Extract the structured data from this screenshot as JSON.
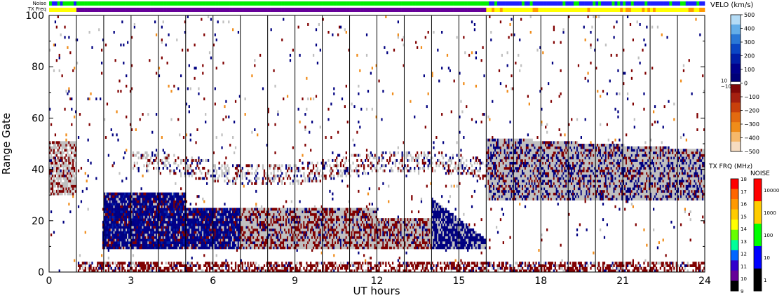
{
  "chart_data": {
    "type": "heatmap",
    "header_bars": {
      "noise_label": "Noise",
      "txfreq_label": "TX Freq"
    },
    "x": {
      "label": "UT hours",
      "range": [
        0,
        24
      ],
      "ticks": [
        0,
        3,
        6,
        9,
        12,
        15,
        18,
        21,
        24
      ]
    },
    "y": {
      "label": "Range Gate",
      "range": [
        0,
        100
      ],
      "ticks": [
        0,
        20,
        40,
        60,
        80,
        100
      ]
    },
    "scan_boundaries_ut": [
      1.0,
      2.0,
      3.0,
      4.0,
      5.0,
      6.0,
      7.0,
      8.0,
      9.0,
      10.0,
      11.0,
      12.0,
      13.0,
      14.0,
      15.0,
      16.0,
      17.0,
      18.0,
      19.0,
      20.0,
      21.0,
      22.0,
      23.0
    ],
    "velocity_scale": {
      "title": "VELO (km/s)",
      "tick_labels": [
        "500",
        "400",
        "300",
        "200",
        "100",
        "0",
        "−100",
        "−200",
        "−300",
        "−400",
        "−500"
      ],
      "ticks": [
        500,
        400,
        300,
        200,
        100,
        0,
        -100,
        -200,
        -300,
        -400,
        -500
      ],
      "small_labels": [
        "10",
        "−10"
      ],
      "colors": [
        "#f6dcc0",
        "#f6b86a",
        "#f08c1a",
        "#e36a10",
        "#c8400c",
        "#a52010",
        "#800808",
        "#000078",
        "#00008c",
        "#001ea8",
        "#0a46c4",
        "#2a78d6",
        "#64aee8",
        "#b4dcf6"
      ]
    },
    "txfreq_scale": {
      "title": "TX FRQ (MHz)",
      "tick_labels": [
        "18",
        "17",
        "16",
        "15",
        "14",
        "13",
        "12",
        "11",
        "10",
        "9"
      ],
      "colors": [
        "#ff0000",
        "#ff6600",
        "#ff9900",
        "#ffcc00",
        "#ffff00",
        "#66ff00",
        "#00ff99",
        "#0066ff",
        "#3300cc",
        "#660099",
        "#000000"
      ]
    },
    "noise_scale": {
      "title": "NOISE",
      "tick_labels": [
        "10000",
        "1000",
        "100",
        "10",
        "1"
      ],
      "colors": [
        "#ff0000",
        "#ffcc00",
        "#00ff00",
        "#0000ff",
        "#000000"
      ]
    },
    "colors": {
      "ground_scatter": "#c0c0c0",
      "positive_velocity": "#000080",
      "negative_velocity": "#800000",
      "noise_bar_green": "#00ee00",
      "noise_bar_blue": "#1e1eff",
      "txfreq_bar_purple": "#660099",
      "txfreq_bar_yellow": "#ffff00"
    }
  }
}
